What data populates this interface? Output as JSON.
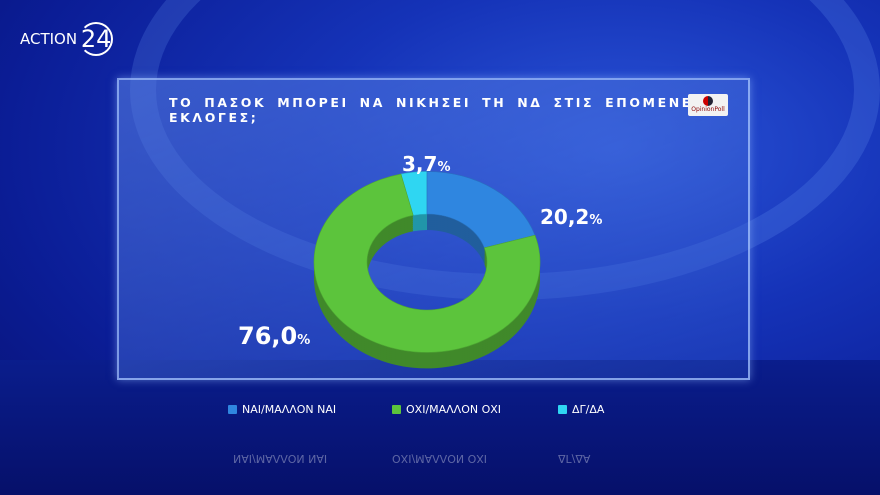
{
  "logo": {
    "text": "ACTION",
    "number": "24"
  },
  "pollster": "OpinionPoll",
  "chart_data": {
    "type": "pie",
    "title": "ΤΟ ΠΑΣΟΚ ΜΠΟΡΕΙ ΝΑ ΝΙΚΗΣΕΙ ΤΗ ΝΔ ΣΤΙΣ ΕΠΟΜΕΝΕΣ ΕΚΛΟΓΕΣ;",
    "categories": [
      "ΝΑΙ/ΜΑΛΛΟΝ ΝΑΙ",
      "ΟΧΙ/ΜΑΛΛΟΝ ΟΧΙ",
      "ΔΓ/ΔΑ"
    ],
    "values": [
      20.2,
      76.0,
      3.7
    ],
    "labels": [
      "20,2",
      "76,0",
      "3,7"
    ],
    "unit": "%",
    "colors": [
      "#2f86e0",
      "#5cc43c",
      "#2fd6f2"
    ],
    "legend": "bottom"
  }
}
